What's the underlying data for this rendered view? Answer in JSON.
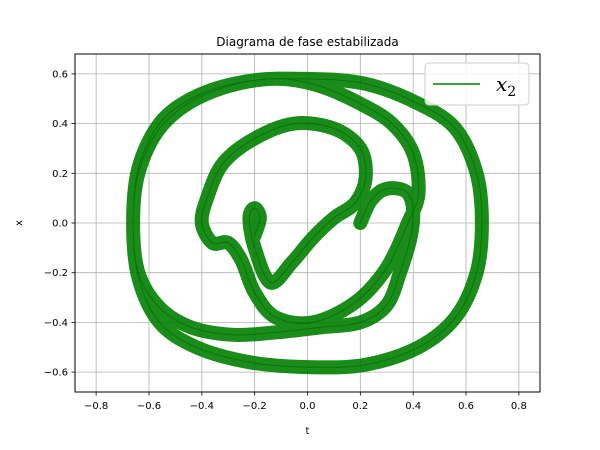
{
  "chart_data": {
    "type": "line",
    "title": "Diagrama de fase estabilizada",
    "xlabel": "t",
    "ylabel": "x",
    "xlim": [
      -0.88,
      0.88
    ],
    "ylim": [
      -0.68,
      0.68
    ],
    "xticks": [
      -0.8,
      -0.6,
      -0.4,
      -0.2,
      0.0,
      0.2,
      0.4,
      0.6,
      0.8
    ],
    "xtick_labels": [
      "−0.8",
      "−0.6",
      "−0.4",
      "−0.2",
      "0.0",
      "0.2",
      "0.4",
      "0.6",
      "0.8"
    ],
    "yticks": [
      -0.6,
      -0.4,
      -0.2,
      0.0,
      0.2,
      0.4,
      0.6
    ],
    "ytick_labels": [
      "−0.6",
      "−0.4",
      "−0.2",
      "0.0",
      "0.2",
      "0.4",
      "0.6"
    ],
    "grid": true,
    "legend_position": "top-right",
    "series": [
      {
        "name": "x_2",
        "legend_main": "x",
        "legend_sub": "2",
        "color": "#008000",
        "curve_description": "stabilized phase portrait: thick closed loop band with two inner spiral lobes",
        "points": [
          [
            0.2,
            0.0
          ],
          [
            0.22,
            0.05
          ],
          [
            0.24,
            0.09
          ],
          [
            0.28,
            0.13
          ],
          [
            0.33,
            0.14
          ],
          [
            0.38,
            0.12
          ],
          [
            0.4,
            0.05
          ],
          [
            0.39,
            -0.06
          ],
          [
            0.35,
            -0.2
          ],
          [
            0.3,
            -0.33
          ],
          [
            0.2,
            -0.4
          ],
          [
            0.05,
            -0.42
          ],
          [
            -0.12,
            -0.44
          ],
          [
            -0.28,
            -0.45
          ],
          [
            -0.44,
            -0.42
          ],
          [
            -0.56,
            -0.34
          ],
          [
            -0.64,
            -0.2
          ],
          [
            -0.66,
            0.0
          ],
          [
            -0.64,
            0.2
          ],
          [
            -0.56,
            0.38
          ],
          [
            -0.42,
            0.5
          ],
          [
            -0.22,
            0.57
          ],
          [
            0.0,
            0.58
          ],
          [
            0.22,
            0.56
          ],
          [
            0.42,
            0.48
          ],
          [
            0.56,
            0.38
          ],
          [
            0.64,
            0.2
          ],
          [
            0.66,
            0.0
          ],
          [
            0.64,
            -0.2
          ],
          [
            0.56,
            -0.38
          ],
          [
            0.42,
            -0.5
          ],
          [
            0.22,
            -0.57
          ],
          [
            0.0,
            -0.58
          ],
          [
            -0.22,
            -0.56
          ],
          [
            -0.42,
            -0.5
          ],
          [
            -0.56,
            -0.4
          ],
          [
            -0.64,
            -0.22
          ],
          [
            -0.66,
            0.0
          ],
          [
            -0.64,
            0.22
          ],
          [
            -0.56,
            0.4
          ],
          [
            -0.44,
            0.5
          ],
          [
            -0.28,
            0.56
          ],
          [
            -0.1,
            0.58
          ],
          [
            0.05,
            0.55
          ],
          [
            0.2,
            0.48
          ],
          [
            0.32,
            0.4
          ],
          [
            0.4,
            0.28
          ],
          [
            0.42,
            0.12
          ],
          [
            0.38,
            0.0
          ],
          [
            0.3,
            -0.18
          ],
          [
            0.18,
            -0.32
          ],
          [
            0.02,
            -0.4
          ],
          [
            -0.12,
            -0.38
          ],
          [
            -0.2,
            -0.28
          ],
          [
            -0.25,
            -0.15
          ],
          [
            -0.3,
            -0.08
          ],
          [
            -0.36,
            -0.08
          ],
          [
            -0.4,
            0.0
          ],
          [
            -0.38,
            0.1
          ],
          [
            -0.32,
            0.24
          ],
          [
            -0.2,
            0.34
          ],
          [
            -0.05,
            0.4
          ],
          [
            0.1,
            0.38
          ],
          [
            0.2,
            0.3
          ],
          [
            0.22,
            0.18
          ],
          [
            0.18,
            0.08
          ],
          [
            0.1,
            0.02
          ],
          [
            0.02,
            -0.06
          ],
          [
            -0.06,
            -0.16
          ],
          [
            -0.14,
            -0.24
          ],
          [
            -0.2,
            -0.1
          ],
          [
            -0.22,
            0.02
          ],
          [
            -0.2,
            0.06
          ],
          [
            -0.18,
            0.02
          ],
          [
            -0.2,
            -0.05
          ]
        ]
      }
    ]
  }
}
